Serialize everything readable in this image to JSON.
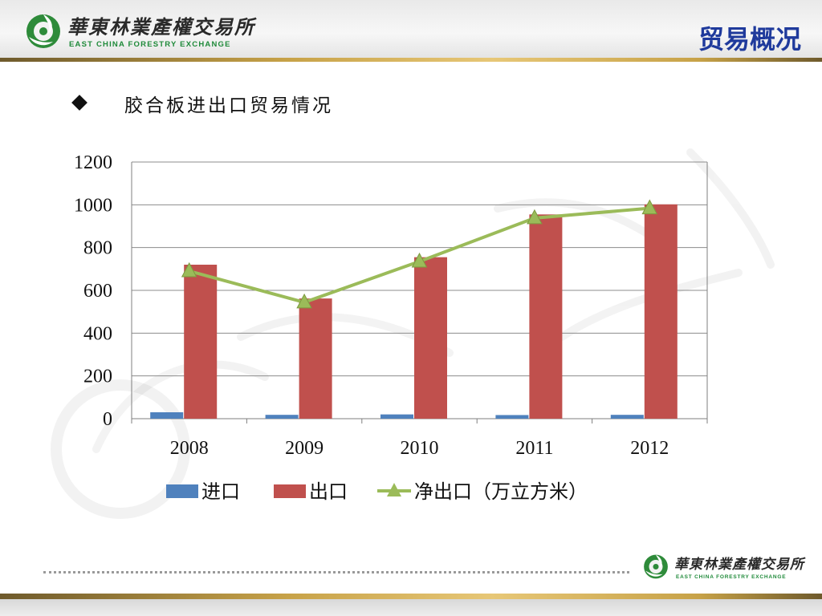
{
  "header": {
    "logo_cn": "華東林業產權交易所",
    "logo_en": "EAST CHINA FORESTRY EXCHANGE",
    "page_title": "贸易概况"
  },
  "subtitle": "胶合板进出口贸易情况",
  "colors": {
    "import": "#4f81bd",
    "export": "#c0504d",
    "net_export": "#9bbb59",
    "title": "#1f3a9c"
  },
  "chart_data": {
    "type": "bar",
    "categories": [
      "2008",
      "2009",
      "2010",
      "2011",
      "2012"
    ],
    "series": [
      {
        "name": "进口",
        "type": "bar",
        "values": [
          30,
          18,
          20,
          17,
          18
        ]
      },
      {
        "name": "出口",
        "type": "bar",
        "values": [
          720,
          562,
          755,
          955,
          1002
        ]
      },
      {
        "name": "净出口（万立方米）",
        "type": "line",
        "marker": "triangle",
        "values": [
          690,
          544,
          735,
          938,
          984
        ]
      }
    ],
    "ylim": [
      0,
      1200
    ],
    "yticks": [
      "0",
      "200",
      "400",
      "600",
      "800",
      "1000",
      "1200"
    ],
    "grid": true,
    "legend": "bottom"
  },
  "footer": {
    "logo_cn": "華東林業產權交易所",
    "logo_en": "EAST CHINA FORESTRY EXCHANGE"
  }
}
